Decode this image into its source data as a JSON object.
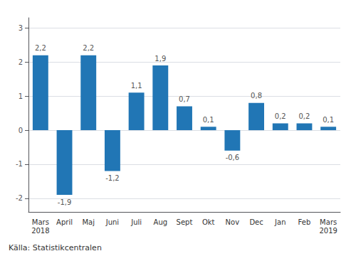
{
  "chart_data": {
    "type": "bar",
    "categories": [
      "Mars\n2018",
      "April",
      "Maj",
      "Juni",
      "Juli",
      "Aug",
      "Sept",
      "Okt",
      "Nov",
      "Dec",
      "Jan",
      "Feb",
      "Mars\n2019"
    ],
    "values": [
      2.2,
      -1.9,
      2.2,
      -1.2,
      1.1,
      1.9,
      0.7,
      0.1,
      -0.6,
      0.8,
      0.2,
      0.2,
      0.1
    ],
    "value_labels": [
      "2,2",
      "-1,9",
      "2,2",
      "-1,2",
      "1,1",
      "1,9",
      "0,7",
      "0,1",
      "-0,6",
      "0,8",
      "0,2",
      "0,2",
      "0,1"
    ],
    "data_labels": true,
    "color": "#2176b5",
    "ylim": [
      -2.4,
      3.3
    ],
    "yticks": [
      -2,
      -1,
      0,
      1,
      2,
      3
    ],
    "grid": true,
    "annotations": [
      {
        "text": "Källa: Statistikcentralen"
      }
    ]
  }
}
